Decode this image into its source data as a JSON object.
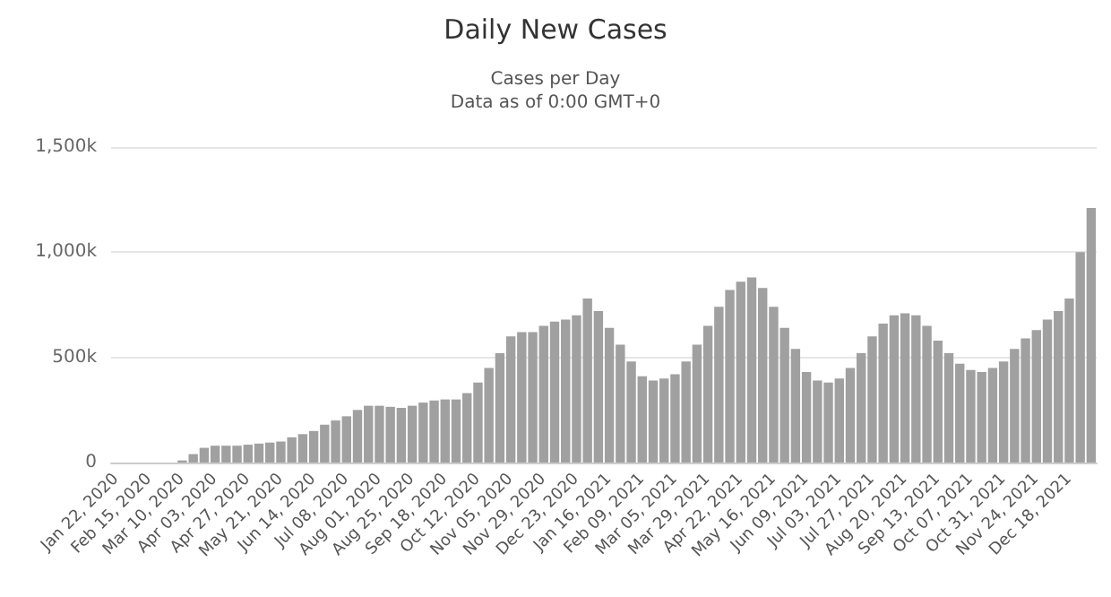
{
  "chart_data": {
    "type": "bar",
    "title": "Daily New Cases",
    "subtitle": "Cases per Day\nData as of 0:00 GMT+0",
    "categories": [
      "Jan 22, 2020",
      null,
      null,
      "Feb 15, 2020",
      null,
      null,
      "Mar 10, 2020",
      null,
      null,
      "Apr 03, 2020",
      null,
      null,
      "Apr 27, 2020",
      null,
      null,
      "May 21, 2020",
      null,
      null,
      "Jun 14, 2020",
      null,
      null,
      "Jul 08, 2020",
      null,
      null,
      "Aug 01, 2020",
      null,
      null,
      "Aug 25, 2020",
      null,
      null,
      "Sep 18, 2020",
      null,
      null,
      "Oct 12, 2020",
      null,
      null,
      "Nov 05, 2020",
      null,
      null,
      "Nov 29, 2020",
      null,
      null,
      "Dec 23, 2020",
      null,
      null,
      "Jan 16, 2021",
      null,
      null,
      "Feb 09, 2021",
      null,
      null,
      "Mar 05, 2021",
      null,
      null,
      "Mar 29, 2021",
      null,
      null,
      "Apr 22, 2021",
      null,
      null,
      "May 16, 2021",
      null,
      null,
      "Jun 09, 2021",
      null,
      null,
      "Jul 03, 2021",
      null,
      null,
      "Jul 27, 2021",
      null,
      null,
      "Aug 20, 2021",
      null,
      null,
      "Sep 13, 2021",
      null,
      null,
      "Oct 07, 2021",
      null,
      null,
      "Oct 31, 2021",
      null,
      null,
      "Nov 24, 2021",
      null,
      null,
      "Dec 18, 2021",
      null,
      null
    ],
    "values": [
      0,
      0,
      0,
      0,
      0,
      0,
      10000,
      40000,
      70000,
      80000,
      80000,
      80000,
      85000,
      90000,
      95000,
      100000,
      120000,
      135000,
      150000,
      180000,
      200000,
      220000,
      250000,
      270000,
      270000,
      265000,
      260000,
      270000,
      285000,
      295000,
      300000,
      300000,
      330000,
      380000,
      450000,
      520000,
      600000,
      620000,
      620000,
      650000,
      670000,
      680000,
      700000,
      780000,
      720000,
      640000,
      560000,
      480000,
      410000,
      390000,
      400000,
      420000,
      480000,
      560000,
      650000,
      740000,
      820000,
      860000,
      880000,
      830000,
      740000,
      640000,
      540000,
      430000,
      390000,
      380000,
      400000,
      450000,
      520000,
      600000,
      660000,
      700000,
      710000,
      700000,
      650000,
      580000,
      520000,
      470000,
      440000,
      430000,
      450000,
      480000,
      540000,
      590000,
      630000,
      680000,
      720000,
      780000,
      1000000,
      1210000
    ],
    "color": "#a0a0a0",
    "ylim": [
      0,
      1500000
    ],
    "yticks": [
      0,
      {
        "value": 500000,
        "label": "500k"
      },
      {
        "value": 1000000,
        "label": "1,000k"
      },
      {
        "value": 1500000,
        "label": "1,500k"
      }
    ],
    "grid": "y"
  }
}
